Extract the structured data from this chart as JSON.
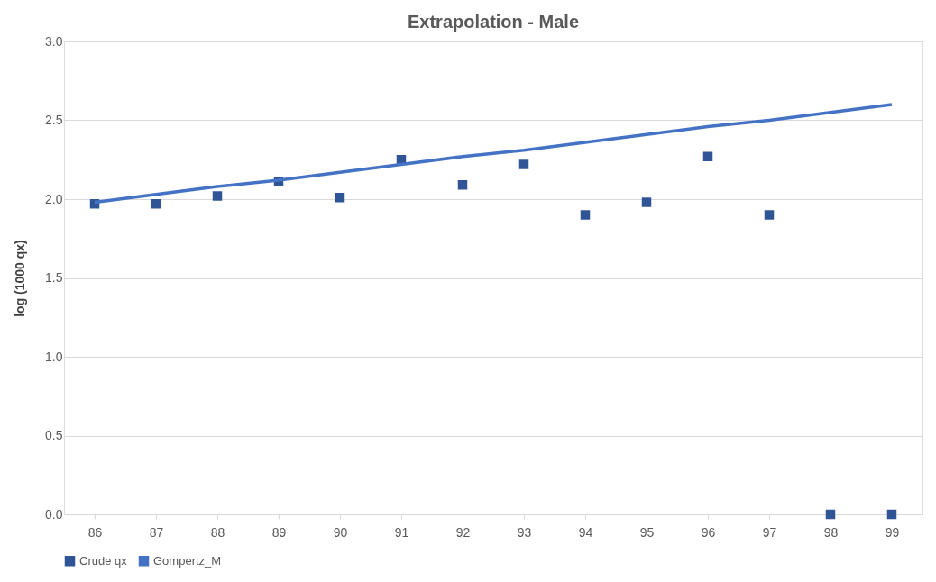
{
  "chart_data": {
    "type": "scatter",
    "title": "Extrapolation - Male",
    "ylabel": "log (1000 qx)",
    "categories": [
      "86",
      "87",
      "88",
      "89",
      "90",
      "91",
      "92",
      "93",
      "94",
      "95",
      "96",
      "97",
      "98",
      "99"
    ],
    "series": [
      {
        "name": "Crude qx",
        "color": "#2f5597",
        "marker": "square",
        "values": [
          1.97,
          1.97,
          2.02,
          2.11,
          2.01,
          2.25,
          2.09,
          2.22,
          1.9,
          1.98,
          2.27,
          1.9,
          0.0,
          0.0
        ]
      },
      {
        "name": "Gompertz_M",
        "type": "line",
        "color": "#4472c4",
        "marker": "none",
        "line_style": "solid",
        "values": [
          1.98,
          2.03,
          2.08,
          2.12,
          2.17,
          2.22,
          2.27,
          2.31,
          2.36,
          2.41,
          2.46,
          2.5,
          2.55,
          2.6
        ]
      }
    ],
    "ylim": [
      0,
      3.0
    ],
    "yticks": [
      {
        "value": 0,
        "label": "0.0"
      },
      {
        "value": 0.5,
        "label": "0.5"
      },
      {
        "value": 1,
        "label": "1.0"
      },
      {
        "value": 1.5,
        "label": "1.5"
      },
      {
        "value": 2,
        "label": "2.0"
      },
      {
        "value": 2.5,
        "label": "2.5"
      },
      {
        "value": 3,
        "label": "3.0"
      }
    ],
    "grid": "y",
    "legend": "bottom"
  }
}
